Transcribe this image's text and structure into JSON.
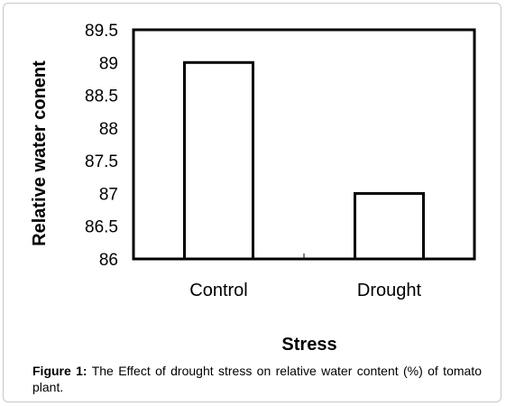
{
  "chart_data": {
    "type": "bar",
    "categories": [
      "Control",
      "Drought"
    ],
    "values": [
      89,
      87
    ],
    "xlabel": "Stress",
    "ylabel": "Relative water conent",
    "ylim": [
      86,
      89.5
    ],
    "yticks": [
      "89.5",
      "89",
      "88.5",
      "88",
      "87.5",
      "87",
      "86.5",
      "86"
    ],
    "grid": false,
    "legend": "none",
    "bar_fill": "#ffffff",
    "bar_stroke": "#000000"
  },
  "caption": {
    "label": "Figure 1:",
    "text": " The Effect of drought stress on relative water content (%) of tomato plant."
  }
}
